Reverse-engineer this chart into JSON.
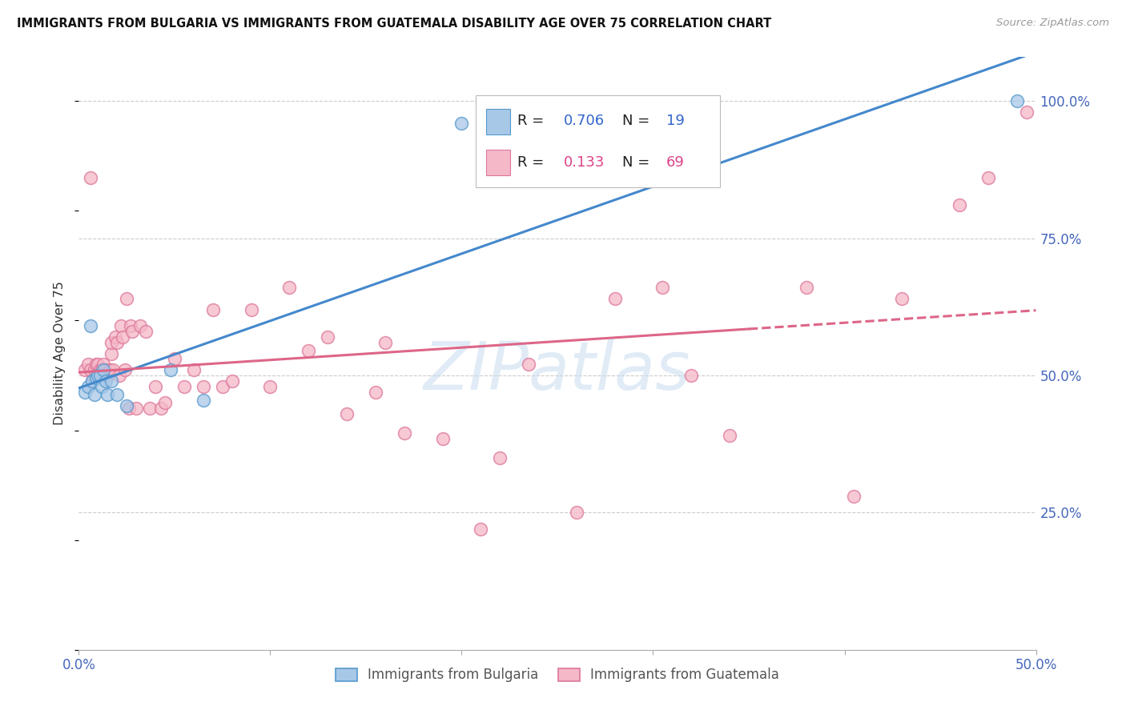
{
  "title": "IMMIGRANTS FROM BULGARIA VS IMMIGRANTS FROM GUATEMALA DISABILITY AGE OVER 75 CORRELATION CHART",
  "source": "Source: ZipAtlas.com",
  "ylabel": "Disability Age Over 75",
  "x_min": 0.0,
  "x_max": 0.5,
  "y_min": 0.0,
  "y_max": 1.08,
  "x_tick_positions": [
    0.0,
    0.1,
    0.2,
    0.3,
    0.4,
    0.5
  ],
  "x_tick_labels": [
    "0.0%",
    "",
    "",
    "",
    "",
    "50.0%"
  ],
  "y_tick_positions": [
    0.0,
    0.25,
    0.5,
    0.75,
    1.0
  ],
  "y_tick_labels": [
    "",
    "25.0%",
    "50.0%",
    "75.0%",
    "100.0%"
  ],
  "bulgaria_R": "0.706",
  "bulgaria_N": "19",
  "guatemala_R": "0.133",
  "guatemala_N": "69",
  "bulgaria_fill": "#a8c8e8",
  "bulgaria_edge": "#5599cc",
  "guatemala_fill": "#f5b8c8",
  "guatemala_edge": "#dd7799",
  "blue_line_color": "#4488cc",
  "pink_line_color": "#dd6688",
  "watermark": "ZIPatlas",
  "legend_label_bulgaria": "Immigrants from Bulgaria",
  "legend_label_guatemala": "Immigrants from Guatemala",
  "bulgaria_x": [
    0.003,
    0.005,
    0.006,
    0.007,
    0.008,
    0.009,
    0.01,
    0.011,
    0.012,
    0.013,
    0.014,
    0.015,
    0.017,
    0.02,
    0.025,
    0.048,
    0.065,
    0.2,
    0.49
  ],
  "bulgaria_y": [
    0.47,
    0.48,
    0.59,
    0.49,
    0.465,
    0.495,
    0.5,
    0.5,
    0.48,
    0.51,
    0.49,
    0.465,
    0.49,
    0.465,
    0.445,
    0.51,
    0.455,
    0.96,
    1.0
  ],
  "guatemala_x": [
    0.003,
    0.005,
    0.006,
    0.006,
    0.007,
    0.008,
    0.009,
    0.01,
    0.01,
    0.011,
    0.011,
    0.012,
    0.012,
    0.013,
    0.013,
    0.014,
    0.015,
    0.016,
    0.017,
    0.017,
    0.018,
    0.019,
    0.02,
    0.021,
    0.022,
    0.023,
    0.024,
    0.025,
    0.026,
    0.027,
    0.028,
    0.03,
    0.032,
    0.035,
    0.037,
    0.04,
    0.043,
    0.045,
    0.05,
    0.055,
    0.06,
    0.065,
    0.07,
    0.075,
    0.08,
    0.09,
    0.1,
    0.11,
    0.12,
    0.13,
    0.14,
    0.155,
    0.16,
    0.17,
    0.19,
    0.21,
    0.22,
    0.235,
    0.26,
    0.28,
    0.305,
    0.32,
    0.34,
    0.38,
    0.405,
    0.43,
    0.46,
    0.475,
    0.495
  ],
  "guatemala_y": [
    0.51,
    0.52,
    0.51,
    0.86,
    0.49,
    0.51,
    0.52,
    0.52,
    0.5,
    0.5,
    0.51,
    0.51,
    0.5,
    0.5,
    0.52,
    0.51,
    0.5,
    0.51,
    0.54,
    0.56,
    0.51,
    0.57,
    0.56,
    0.5,
    0.59,
    0.57,
    0.51,
    0.64,
    0.44,
    0.59,
    0.58,
    0.44,
    0.59,
    0.58,
    0.44,
    0.48,
    0.44,
    0.45,
    0.53,
    0.48,
    0.51,
    0.48,
    0.62,
    0.48,
    0.49,
    0.62,
    0.48,
    0.66,
    0.545,
    0.57,
    0.43,
    0.47,
    0.56,
    0.395,
    0.385,
    0.22,
    0.35,
    0.52,
    0.25,
    0.64,
    0.66,
    0.5,
    0.39,
    0.66,
    0.28,
    0.64,
    0.81,
    0.86,
    0.98
  ]
}
